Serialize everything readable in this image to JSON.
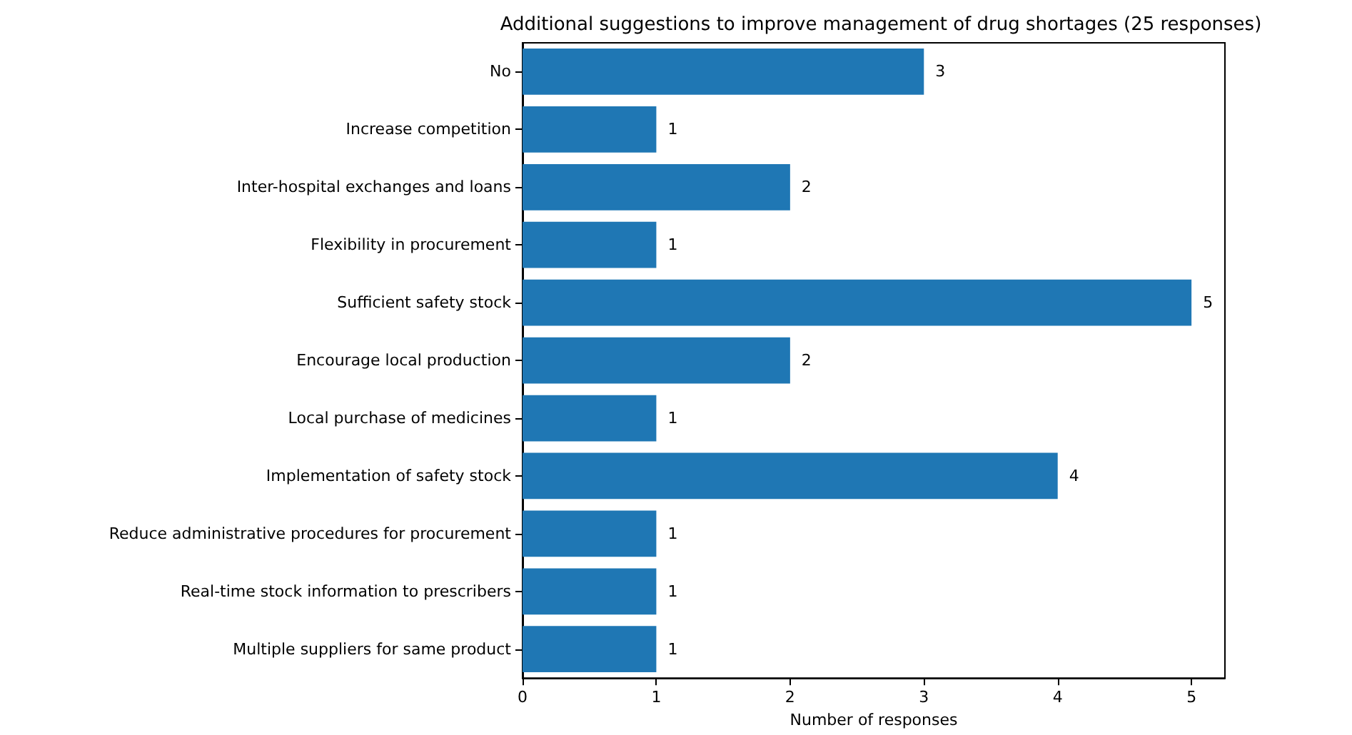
{
  "chart_data": {
    "type": "bar",
    "orientation": "horizontal",
    "title": "Additional suggestions to improve management of drug shortages (25 responses)",
    "xlabel": "Number of responses",
    "categories": [
      "No",
      "Increase competition",
      "Inter-hospital exchanges and loans",
      "Flexibility in procurement",
      "Sufficient safety stock",
      "Encourage local production",
      "Local purchase of medicines",
      "Implementation of safety stock",
      "Reduce administrative procedures for procurement",
      "Real-time stock information to prescribers",
      "Multiple suppliers for same product"
    ],
    "values": [
      3,
      1,
      2,
      1,
      5,
      2,
      1,
      4,
      1,
      1,
      1
    ],
    "color": "#1f77b4",
    "xlim": [
      0,
      5.25
    ],
    "xticks": [
      0,
      1,
      2,
      3,
      4,
      5
    ],
    "grid": false,
    "data_labels": true
  }
}
